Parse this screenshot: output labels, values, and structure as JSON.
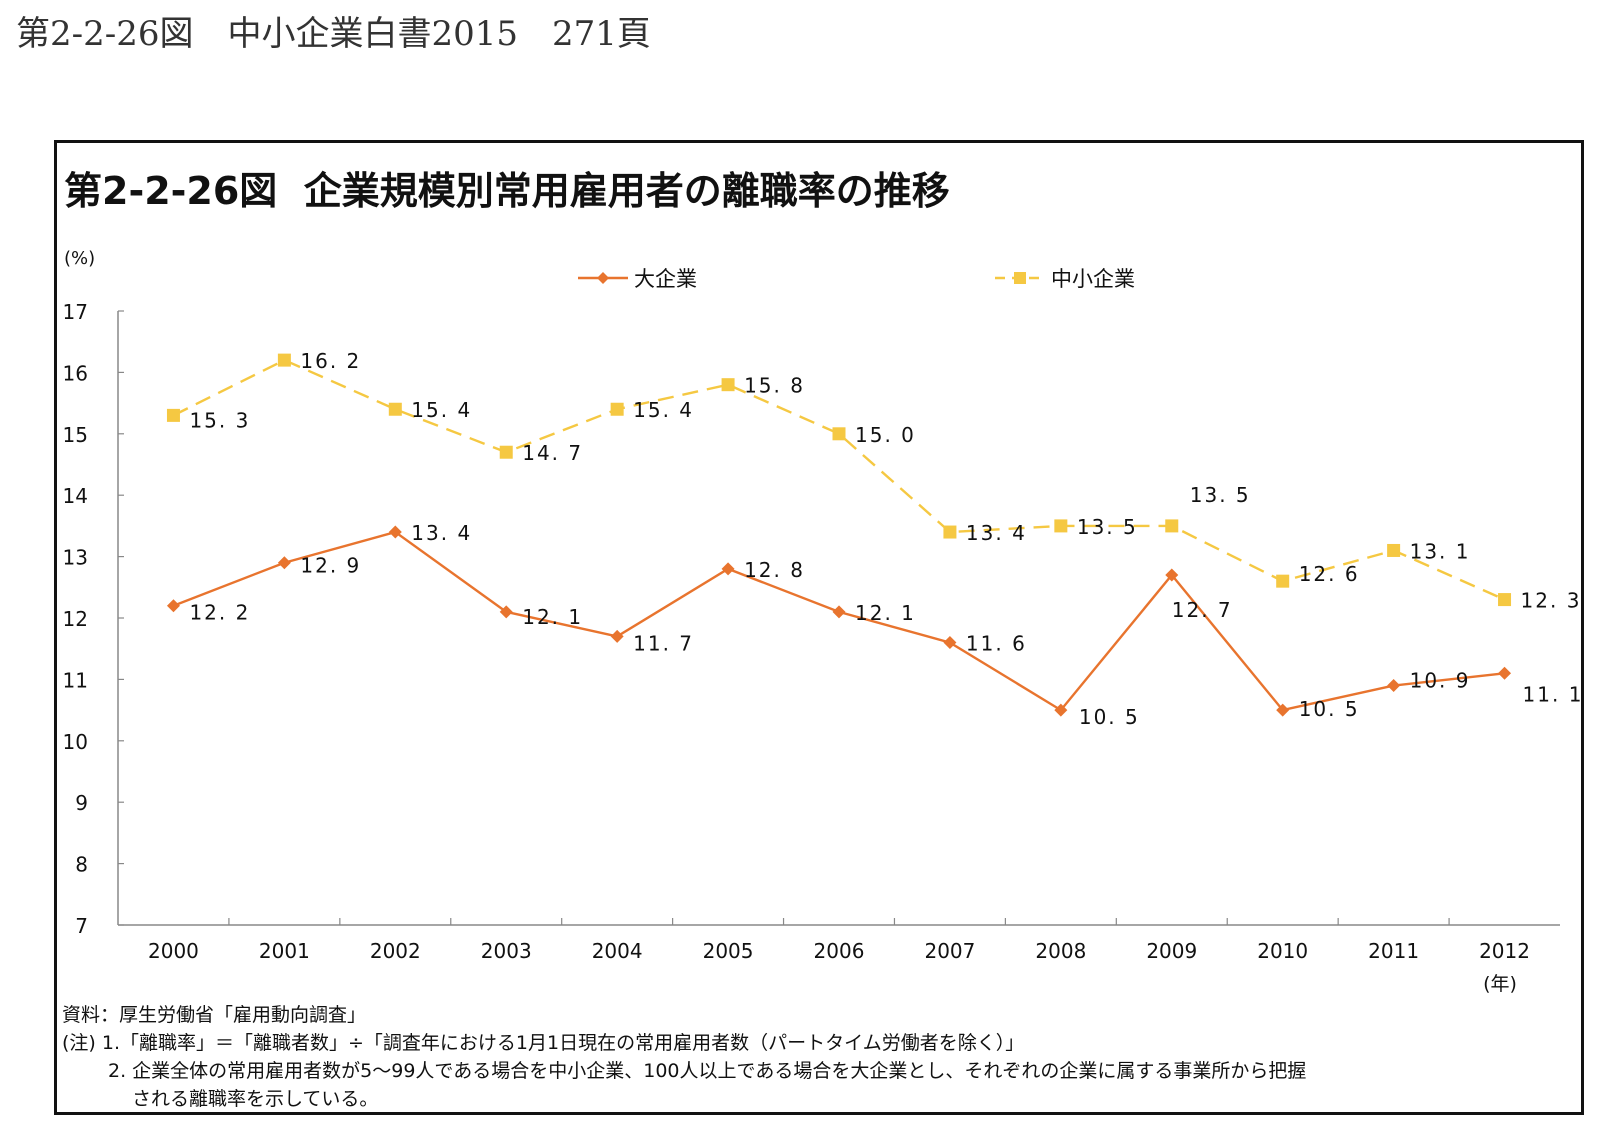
{
  "page": {
    "title": "第2-2-26図　中小企業白書2015　271頁"
  },
  "chart_data": {
    "type": "line",
    "title": "第2-2-26図  企業規模別常用雇用者の離職率の推移",
    "ylabel": "(%)",
    "xlabel": "(年)",
    "x": [
      "2000",
      "2001",
      "2002",
      "2003",
      "2004",
      "2005",
      "2006",
      "2007",
      "2008",
      "2009",
      "2010",
      "2011",
      "2012"
    ],
    "ylim": [
      7,
      17
    ],
    "yticks": [
      17,
      16,
      15,
      14,
      13,
      12,
      11,
      10,
      9,
      8,
      7
    ],
    "grid": false,
    "legend_position": "top",
    "series": [
      {
        "name": "大企業",
        "color": "#E8742E",
        "marker": "diamond",
        "line_style": "solid",
        "values": [
          12.2,
          12.9,
          13.4,
          12.1,
          11.7,
          12.8,
          12.1,
          11.6,
          10.5,
          12.7,
          10.5,
          10.9,
          11.1
        ],
        "labels": [
          "12.2",
          "12.9",
          "13.4",
          "12.1",
          "11.7",
          "12.8",
          "12.1",
          "11.6",
          "10.5",
          "12.7",
          "10.5",
          "10.9",
          "11.1"
        ]
      },
      {
        "name": "中小企業",
        "color": "#F5C842",
        "marker": "square",
        "line_style": "dashed",
        "values": [
          15.3,
          16.2,
          15.4,
          14.7,
          15.4,
          15.8,
          15.0,
          13.4,
          13.5,
          13.5,
          12.6,
          13.1,
          12.3
        ],
        "labels": [
          "15.3",
          "16.2",
          "15.4",
          "14.7",
          "15.4",
          "15.8",
          "15.0",
          "13.4",
          "13.5",
          "13.5",
          "12.6",
          "13.1",
          "12.3"
        ]
      }
    ]
  },
  "footnotes": {
    "source": "資料：厚生労働省「雇用動向調査」",
    "note1": "(注) 1.「離職率」＝「離職者数」÷「調査年における1月1日現在の常用雇用者数（パートタイム労働者を除く）」",
    "note2": "2. 企業全体の常用雇用者数が5～99人である場合を中小企業、100人以上である場合を大企業とし、それぞれの企業に属する事業所から把握",
    "note2_cont": "される離職率を示している。"
  }
}
